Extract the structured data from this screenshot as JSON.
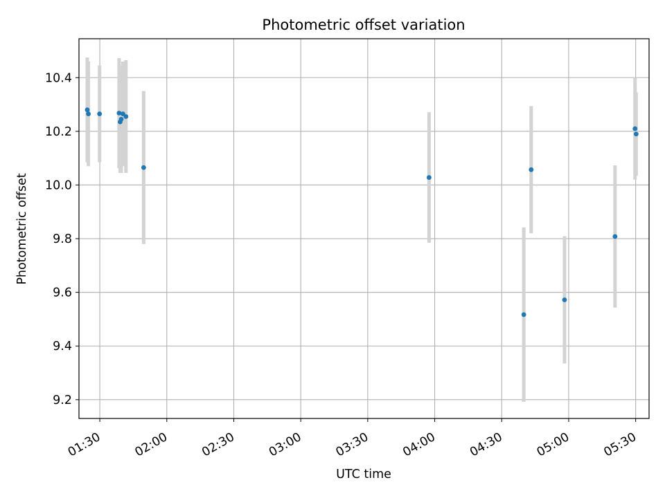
{
  "chart_data": {
    "type": "scatter",
    "title": "Photometric offset variation",
    "xlabel": "UTC time",
    "ylabel": "Photometric offset",
    "grid": true,
    "xlim": [
      "01:20:40",
      "05:36:00"
    ],
    "ylim": [
      9.13,
      10.545
    ],
    "x_ticks": [
      "01:30",
      "02:00",
      "02:30",
      "03:00",
      "03:30",
      "04:00",
      "04:30",
      "05:00",
      "05:30"
    ],
    "y_ticks": [
      "9.2",
      "9.4",
      "9.6",
      "9.8",
      "10.0",
      "10.2",
      "10.4"
    ],
    "series": [
      {
        "marker_color": "#1f77b4",
        "errorbar_color": "#d3d3d3",
        "points": [
          {
            "time": "01:24:23",
            "y": 10.28,
            "yerr": 0.195
          },
          {
            "time": "01:24:53",
            "y": 10.265,
            "yerr": 0.195
          },
          {
            "time": "01:29:53",
            "y": 10.265,
            "yerr": 0.18
          },
          {
            "time": "01:38:38",
            "y": 10.268,
            "yerr": 0.205
          },
          {
            "time": "01:39:06",
            "y": 10.235,
            "yerr": 0.19
          },
          {
            "time": "01:39:35",
            "y": 10.245,
            "yerr": 0.2
          },
          {
            "time": "01:40:20",
            "y": 10.265,
            "yerr": 0.195
          },
          {
            "time": "01:41:42",
            "y": 10.255,
            "yerr": 0.21
          },
          {
            "time": "01:49:38",
            "y": 10.065,
            "yerr": 0.285
          },
          {
            "time": "03:57:28",
            "y": 10.028,
            "yerr": 0.243
          },
          {
            "time": "04:39:54",
            "y": 9.517,
            "yerr": 0.325
          },
          {
            "time": "04:43:12",
            "y": 10.057,
            "yerr": 0.237
          },
          {
            "time": "04:58:08",
            "y": 9.572,
            "yerr": 0.237
          },
          {
            "time": "05:20:45",
            "y": 9.808,
            "yerr": 0.265
          },
          {
            "time": "05:29:43",
            "y": 10.21,
            "yerr": 0.19
          },
          {
            "time": "05:30:13",
            "y": 10.19,
            "yerr": 0.155
          }
        ]
      }
    ]
  }
}
